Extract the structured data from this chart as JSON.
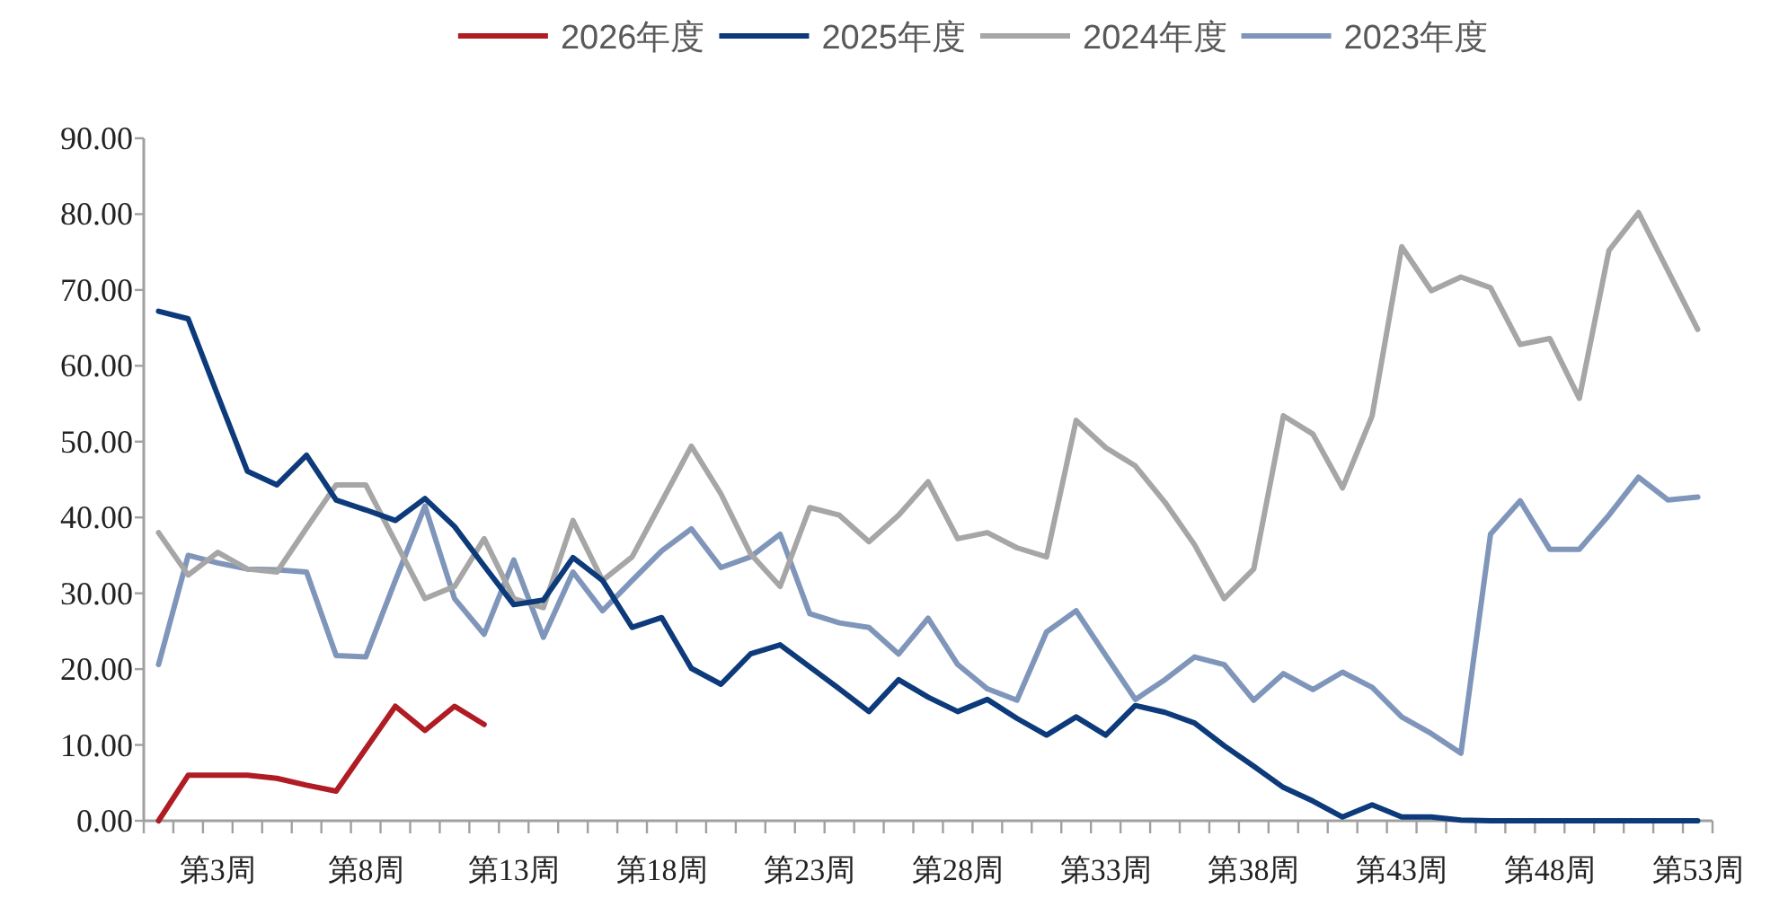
{
  "chart_data": {
    "type": "line",
    "legend": "top",
    "categories": [
      null,
      null,
      "第3周",
      null,
      null,
      null,
      null,
      "第8周",
      null,
      null,
      null,
      null,
      "第13周",
      null,
      null,
      null,
      null,
      "第18周",
      null,
      null,
      null,
      null,
      "第23周",
      null,
      null,
      null,
      null,
      "第28周",
      null,
      null,
      null,
      null,
      "第33周",
      null,
      null,
      null,
      null,
      "第38周",
      null,
      null,
      null,
      null,
      "第43周",
      null,
      null,
      null,
      null,
      "第48周",
      null,
      null,
      null,
      null,
      "第53周"
    ],
    "ylim": [
      0,
      90
    ],
    "yticks": [
      {
        "value": 0,
        "label": "0.00"
      },
      {
        "value": 10,
        "label": "10.00"
      },
      {
        "value": 20,
        "label": "20.00"
      },
      {
        "value": 30,
        "label": "30.00"
      },
      {
        "value": 40,
        "label": "40.00"
      },
      {
        "value": 50,
        "label": "50.00"
      },
      {
        "value": 60,
        "label": "60.00"
      },
      {
        "value": 70,
        "label": "70.00"
      },
      {
        "value": 80,
        "label": "80.00"
      },
      {
        "value": 90,
        "label": "90.00"
      }
    ],
    "series": [
      {
        "name": "2026年度",
        "color": "#b01c24",
        "values": [
          0,
          6.0,
          6.0,
          6.0,
          5.6,
          4.7,
          3.9,
          9.5,
          15.1,
          11.9,
          15.1,
          12.7,
          null,
          null,
          null,
          null,
          null,
          null,
          null,
          null,
          null,
          null,
          null,
          null,
          null,
          null,
          null,
          null,
          null,
          null,
          null,
          null,
          null,
          null,
          null,
          null,
          null,
          null,
          null,
          null,
          null,
          null,
          null,
          null,
          null,
          null,
          null,
          null,
          null,
          null,
          null,
          null,
          null
        ]
      },
      {
        "name": "2025年度",
        "color": "#0d3a7a",
        "values": [
          67.2,
          66.2,
          56.1,
          46.1,
          44.3,
          48.2,
          42.3,
          41.0,
          39.6,
          42.5,
          38.8,
          33.6,
          28.5,
          29.1,
          34.7,
          31.7,
          25.5,
          26.8,
          20.1,
          18.0,
          22.0,
          23.2,
          20.3,
          17.4,
          14.4,
          18.6,
          16.3,
          14.4,
          16.0,
          13.5,
          11.3,
          13.7,
          11.3,
          15.2,
          14.3,
          12.9,
          9.9,
          7.2,
          4.4,
          2.6,
          0.5,
          2.1,
          0.5,
          0.5,
          0.1,
          0,
          0,
          0,
          0,
          0,
          0,
          0,
          0
        ]
      },
      {
        "name": "2024年度",
        "color": "#a6a6a6",
        "values": [
          38.0,
          32.4,
          35.4,
          33.2,
          32.8,
          38.6,
          44.3,
          44.3,
          36.8,
          29.3,
          30.9,
          37.2,
          29.3,
          28.1,
          39.6,
          31.7,
          34.8,
          42.1,
          49.4,
          43.1,
          35.2,
          30.9,
          41.3,
          40.3,
          36.8,
          40.3,
          44.7,
          37.2,
          38.0,
          36.0,
          34.8,
          52.8,
          49.2,
          46.8,
          42.0,
          36.4,
          29.3,
          33.2,
          53.4,
          51.0,
          43.9,
          53.4,
          75.7,
          69.9,
          71.7,
          70.3,
          62.8,
          63.6,
          55.7,
          75.2,
          80.2,
          72.5,
          64.8
        ]
      },
      {
        "name": "2023年度",
        "color": "#7f96ba",
        "values": [
          20.6,
          35.0,
          34.0,
          33.2,
          33.1,
          32.8,
          21.8,
          21.6,
          31.7,
          41.5,
          29.3,
          24.6,
          34.4,
          24.2,
          32.8,
          27.7,
          31.7,
          35.6,
          38.5,
          33.4,
          34.8,
          37.8,
          27.3,
          26.1,
          25.5,
          22.0,
          26.7,
          20.6,
          17.4,
          15.9,
          24.9,
          27.7,
          21.8,
          16.0,
          18.6,
          21.6,
          20.6,
          15.9,
          19.4,
          17.3,
          19.6,
          17.6,
          13.7,
          11.5,
          8.9,
          37.8,
          42.2,
          35.8,
          35.8,
          40.3,
          45.3,
          42.3,
          42.7
        ]
      }
    ]
  }
}
